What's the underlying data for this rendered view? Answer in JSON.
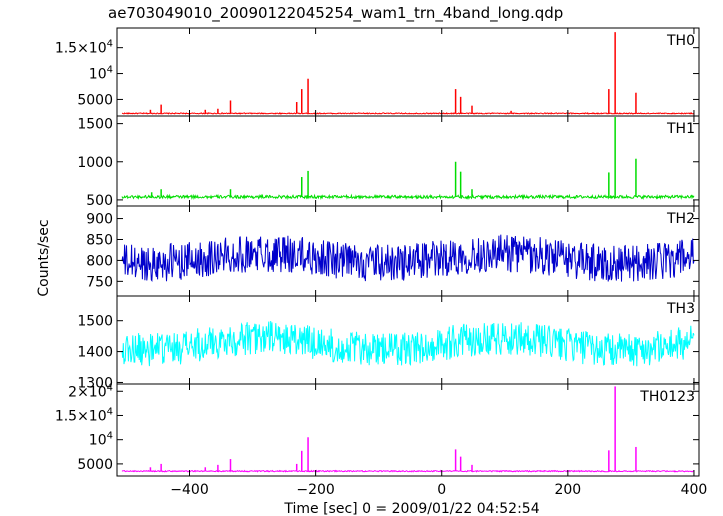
{
  "title": "ae703049010_20090122045254_wam1_trn_4band_long.qdp",
  "xlabel": "Time [sec] 0 = 2009/01/22 04:52:54",
  "ylabel": "Counts/sec",
  "chart_data": [
    {
      "type": "line",
      "band": "TH0",
      "color": "#ff0000",
      "xlim": [
        -515,
        408
      ],
      "ylim": [
        1800,
        18800
      ],
      "yticks": [
        {
          "value": 5000,
          "label": "5000"
        },
        {
          "value": 10000,
          "label": "10",
          "exp": "4"
        },
        {
          "value": 15000,
          "label": "1.5×10",
          "exp": "4"
        }
      ],
      "baseline": 2300,
      "noise": 200,
      "spikes": [
        {
          "x": -462,
          "y": 3000
        },
        {
          "x": -445,
          "y": 4000
        },
        {
          "x": -375,
          "y": 3000
        },
        {
          "x": -355,
          "y": 3200
        },
        {
          "x": -335,
          "y": 4800
        },
        {
          "x": -230,
          "y": 4500
        },
        {
          "x": -222,
          "y": 7000
        },
        {
          "x": -212,
          "y": 9000
        },
        {
          "x": 22,
          "y": 7000
        },
        {
          "x": 30,
          "y": 5500
        },
        {
          "x": 48,
          "y": 3800
        },
        {
          "x": 110,
          "y": 2800
        },
        {
          "x": 265,
          "y": 7000
        },
        {
          "x": 275,
          "y": 18000
        },
        {
          "x": 308,
          "y": 6300
        }
      ]
    },
    {
      "type": "line",
      "band": "TH1",
      "color": "#00dd00",
      "xlim": [
        -515,
        408
      ],
      "ylim": [
        420,
        1600
      ],
      "yticks": [
        {
          "value": 500,
          "label": "500"
        },
        {
          "value": 1000,
          "label": "1000"
        },
        {
          "value": 1500,
          "label": "1500"
        }
      ],
      "baseline": 540,
      "noise": 40,
      "spikes": [
        {
          "x": -460,
          "y": 600
        },
        {
          "x": -445,
          "y": 640
        },
        {
          "x": -335,
          "y": 640
        },
        {
          "x": -222,
          "y": 800
        },
        {
          "x": -212,
          "y": 880
        },
        {
          "x": 22,
          "y": 1000
        },
        {
          "x": 30,
          "y": 870
        },
        {
          "x": 48,
          "y": 640
        },
        {
          "x": 265,
          "y": 860
        },
        {
          "x": 275,
          "y": 1600
        },
        {
          "x": 308,
          "y": 1040
        }
      ]
    },
    {
      "type": "line",
      "band": "TH2",
      "color": "#0000cc",
      "xlim": [
        -515,
        408
      ],
      "ylim": [
        715,
        930
      ],
      "yticks": [
        {
          "value": 750,
          "label": "750"
        },
        {
          "value": 800,
          "label": "800"
        },
        {
          "value": 850,
          "label": "850"
        },
        {
          "value": 900,
          "label": "900"
        }
      ],
      "baseline": 805,
      "noise": 90,
      "trend": 12,
      "spikes": []
    },
    {
      "type": "line",
      "band": "TH3",
      "color": "#00ffff",
      "xlim": [
        -515,
        408
      ],
      "ylim": [
        1295,
        1580
      ],
      "yticks": [
        {
          "value": 1300,
          "label": "1300"
        },
        {
          "value": 1400,
          "label": "1400"
        },
        {
          "value": 1500,
          "label": "1500"
        }
      ],
      "baseline": 1425,
      "noise": 110,
      "trend": 20,
      "spikes": []
    },
    {
      "type": "line",
      "band": "TH0123",
      "color": "#ff00ff",
      "xlim": [
        -515,
        408
      ],
      "ylim": [
        2500,
        21500
      ],
      "yticks": [
        {
          "value": 5000,
          "label": "5000"
        },
        {
          "value": 10000,
          "label": "10",
          "exp": "4"
        },
        {
          "value": 15000,
          "label": "1.5×10",
          "exp": "4"
        },
        {
          "value": 20000,
          "label": "2×10",
          "exp": "4"
        }
      ],
      "baseline": 3500,
      "noise": 250,
      "spikes": [
        {
          "x": -462,
          "y": 4300
        },
        {
          "x": -445,
          "y": 5000
        },
        {
          "x": -375,
          "y": 4300
        },
        {
          "x": -355,
          "y": 4800
        },
        {
          "x": -335,
          "y": 6000
        },
        {
          "x": -230,
          "y": 5000
        },
        {
          "x": -222,
          "y": 7700
        },
        {
          "x": -212,
          "y": 10500
        },
        {
          "x": 22,
          "y": 8000
        },
        {
          "x": 30,
          "y": 6500
        },
        {
          "x": 48,
          "y": 4800
        },
        {
          "x": 265,
          "y": 7800
        },
        {
          "x": 275,
          "y": 21000
        },
        {
          "x": 308,
          "y": 8500
        }
      ]
    }
  ],
  "xticks": [
    -400,
    -200,
    0,
    200,
    400
  ]
}
